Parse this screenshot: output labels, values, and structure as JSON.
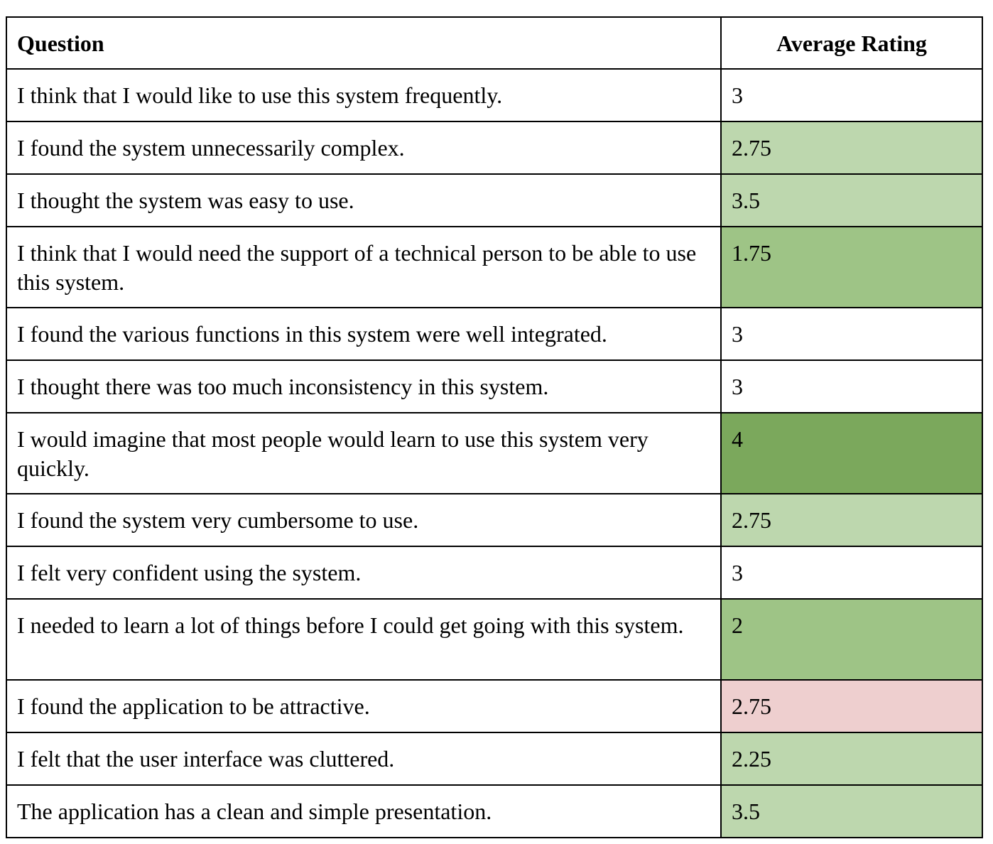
{
  "header": {
    "question": "Question",
    "rating": "Average Rating"
  },
  "rows": [
    {
      "question": "I think that I would like to use this system frequently.",
      "rating": "3",
      "color": "#ffffff"
    },
    {
      "question": "I found the system unnecessarily complex.",
      "rating": "2.75",
      "color": "#bdd7ae"
    },
    {
      "question": "I thought the system was easy to use.",
      "rating": "3.5",
      "color": "#bdd7ae"
    },
    {
      "question": "I think that I would need the support of a technical person to be able to use this system.",
      "rating": "1.75",
      "color": "#9ec486"
    },
    {
      "question": "I found the various functions in this system were well integrated.",
      "rating": "3",
      "color": "#ffffff"
    },
    {
      "question": "I thought there was too much inconsistency in this system.",
      "rating": "3",
      "color": "#ffffff"
    },
    {
      "question": "I would imagine that most people would learn to use this system very quickly.",
      "rating": "4",
      "color": "#7ba85c"
    },
    {
      "question": "I found the system very cumbersome to use.",
      "rating": "2.75",
      "color": "#bdd7ae"
    },
    {
      "question": "I felt very confident using the system.",
      "rating": "3",
      "color": "#ffffff"
    },
    {
      "question": "I needed to learn a lot of things before I could get going with this system.",
      "rating": "2",
      "color": "#9ec486"
    },
    {
      "question": "I found the application to be attractive.",
      "rating": "2.75",
      "color": "#eecfcf"
    },
    {
      "question": "I felt that the user interface was cluttered.",
      "rating": "2.25",
      "color": "#bdd7ae"
    },
    {
      "question": "The application has a clean and simple presentation.",
      "rating": "3.5",
      "color": "#bdd7ae"
    }
  ]
}
